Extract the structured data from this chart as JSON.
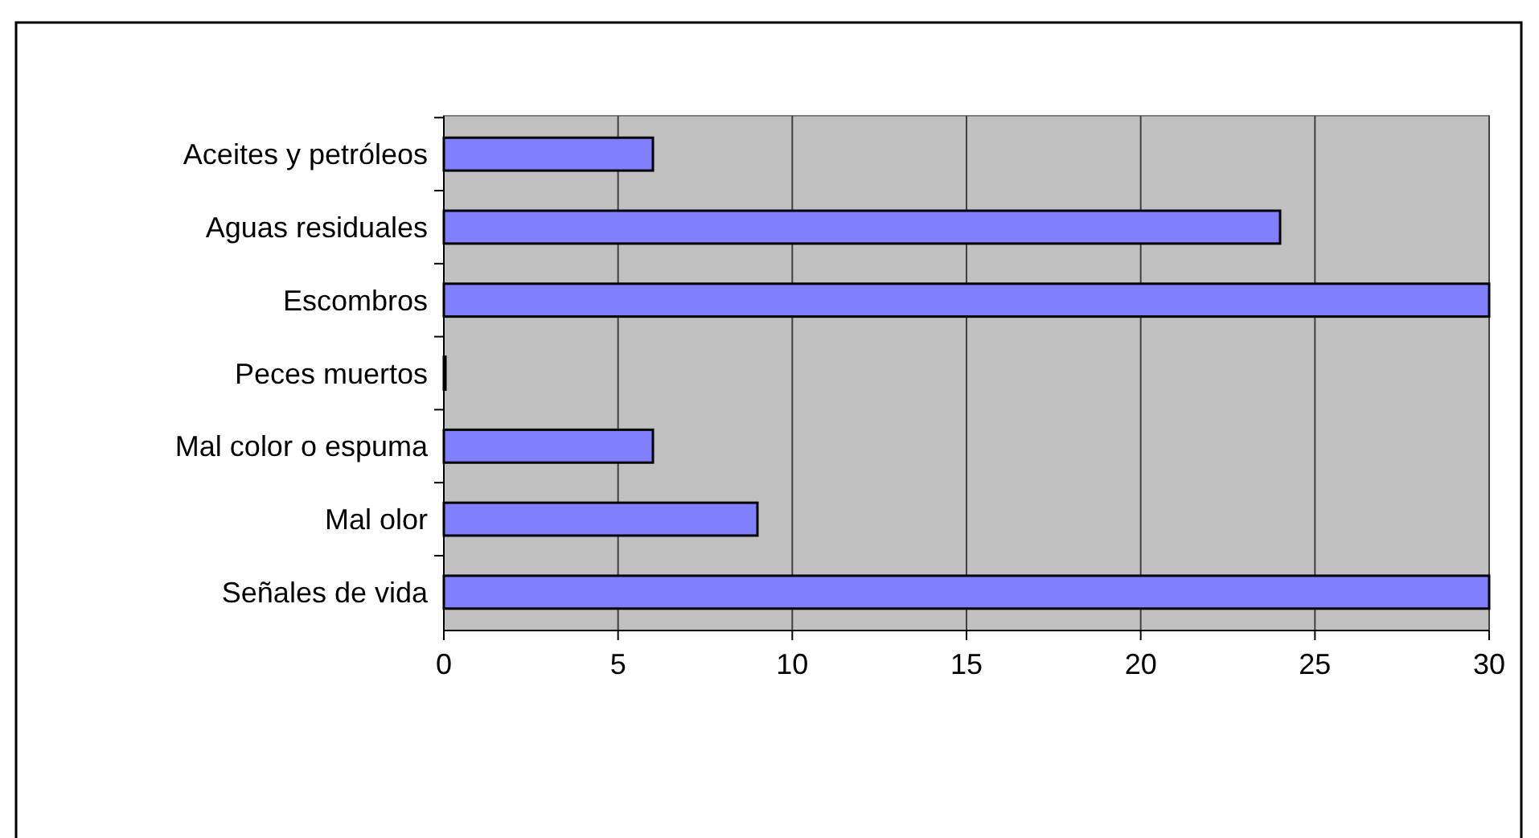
{
  "chart_data": {
    "type": "bar",
    "orientation": "horizontal",
    "categories": [
      "Aceites y petróleos",
      "Aguas residuales",
      "Escombros",
      "Peces muertos",
      "Mal color o espuma",
      "Mal olor",
      "Señales de vida"
    ],
    "values": [
      6,
      24,
      30,
      0,
      6,
      9,
      30
    ],
    "color": "#8080ff",
    "xlim": [
      0,
      30
    ],
    "xticks": [
      0,
      5,
      10,
      15,
      20,
      25,
      30
    ],
    "grid": "x"
  }
}
